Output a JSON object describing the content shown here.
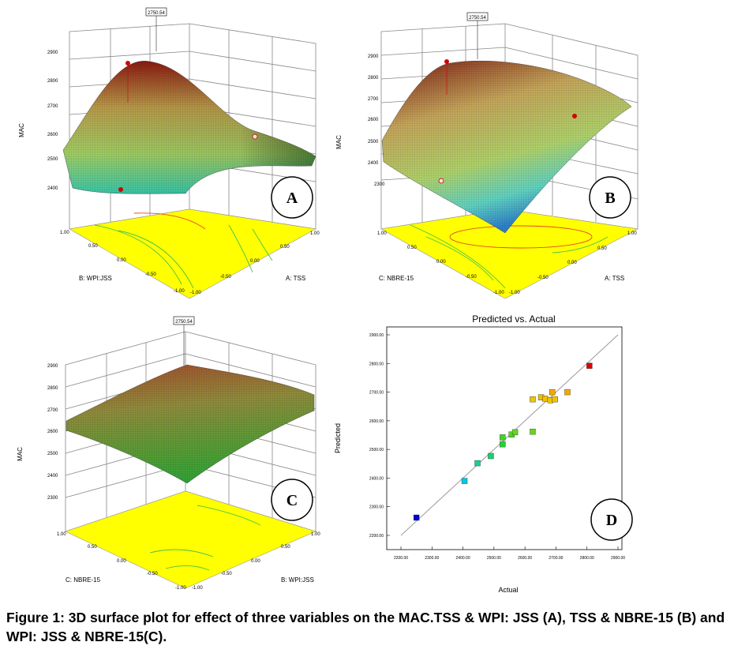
{
  "caption": "Figure 1: 3D surface plot for effect of three variables on the MAC.TSS & WPI: JSS (A), TSS & NBRE-15 (B) and WPI: JSS & NBRE-15(C).",
  "colors": {
    "contour_plane": "#ffff00",
    "fit_line": "#9a9a9a",
    "point_high": "#d40000",
    "point_low": "#1a1aff"
  },
  "chart_data": [
    {
      "type": "surface3d",
      "panel_label": "A",
      "zlabel": "MAC",
      "z_ticks": [
        "2400",
        "2500",
        "2600",
        "2700",
        "2800",
        "2900"
      ],
      "flag_value": "2750.54",
      "x_axis_label": "A: TSS",
      "y_axis_label": "B: WPI:JSS",
      "x_ticks": [
        "1.00",
        "0.50",
        "0.00",
        "-0.50",
        "-1.00"
      ],
      "y_ticks": [
        "1.00",
        "0.50",
        "0.00",
        "-0.50",
        "-1.00"
      ],
      "factor_range": [
        -1,
        1
      ],
      "z_range": [
        2400,
        2900
      ]
    },
    {
      "type": "surface3d",
      "panel_label": "B",
      "zlabel": "MAC",
      "z_ticks": [
        "2300",
        "2400",
        "2500",
        "2600",
        "2700",
        "2800",
        "2900"
      ],
      "flag_value": "2750.54",
      "x_axis_label": "A: TSS",
      "y_axis_label": "C: NBRE-15",
      "x_ticks": [
        "1.00",
        "0.50",
        "0.00",
        "-0.50",
        "-1.00"
      ],
      "y_ticks": [
        "1.00",
        "0.50",
        "0.00",
        "-0.50",
        "-1.00"
      ],
      "factor_range": [
        -1,
        1
      ],
      "z_range": [
        2300,
        2900
      ]
    },
    {
      "type": "surface3d",
      "panel_label": "C",
      "zlabel": "MAC",
      "z_ticks": [
        "2300",
        "2400",
        "2500",
        "2600",
        "2700",
        "2800",
        "2900"
      ],
      "flag_value": "2750.54",
      "x_axis_label": "B: WPI:JSS",
      "y_axis_label": "C: NBRE-15",
      "x_ticks": [
        "1.00",
        "0.50",
        "0.00",
        "-0.50",
        "-1.00"
      ],
      "y_ticks": [
        "1.00",
        "0.50",
        "0.00",
        "-0.50",
        "-1.00"
      ],
      "factor_range": [
        -1,
        1
      ],
      "z_range": [
        2300,
        2900
      ]
    },
    {
      "type": "scatter",
      "panel_label": "D",
      "title": "Predicted vs. Actual",
      "xlabel": "Actual",
      "ylabel": "Predicted",
      "xlim": [
        2200,
        2900
      ],
      "ylim": [
        2200,
        2900
      ],
      "x_ticks": [
        "2200.00",
        "2300.00",
        "2400.00",
        "2500.00",
        "2600.00",
        "2700.00",
        "2800.00",
        "2900.00"
      ],
      "y_ticks": [
        "2200.00",
        "2300.00",
        "2400.00",
        "2500.00",
        "2600.00",
        "2700.00",
        "2800.00",
        "2900.00"
      ],
      "line": {
        "x": [
          2200,
          2900
        ],
        "y": [
          2200,
          2900
        ]
      },
      "points": [
        {
          "x": 2250,
          "y": 2262
        },
        {
          "x": 2405,
          "y": 2390
        },
        {
          "x": 2447,
          "y": 2452
        },
        {
          "x": 2490,
          "y": 2477
        },
        {
          "x": 2528,
          "y": 2518
        },
        {
          "x": 2528,
          "y": 2542
        },
        {
          "x": 2557,
          "y": 2552
        },
        {
          "x": 2568,
          "y": 2560
        },
        {
          "x": 2625,
          "y": 2562
        },
        {
          "x": 2625,
          "y": 2675
        },
        {
          "x": 2652,
          "y": 2682
        },
        {
          "x": 2665,
          "y": 2677
        },
        {
          "x": 2682,
          "y": 2672
        },
        {
          "x": 2688,
          "y": 2700
        },
        {
          "x": 2697,
          "y": 2675
        },
        {
          "x": 2737,
          "y": 2700
        },
        {
          "x": 2808,
          "y": 2792
        }
      ]
    }
  ]
}
